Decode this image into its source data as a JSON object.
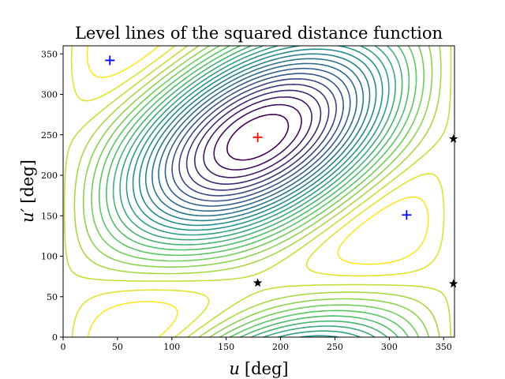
{
  "chart_data": {
    "type": "contour",
    "title": "Level lines of the squared distance function",
    "xlabel_symbol": "u",
    "xlabel_unit": "[deg]",
    "ylabel_symbol": "u′",
    "ylabel_unit": "[deg]",
    "xlim": [
      0,
      360
    ],
    "ylim": [
      0,
      360
    ],
    "xticks": [
      "0",
      "50",
      "100",
      "150",
      "200",
      "250",
      "300",
      "350"
    ],
    "yticks": [
      "0",
      "50",
      "100",
      "150",
      "200",
      "250",
      "300",
      "350"
    ],
    "grid": false,
    "colormap": "viridis",
    "levels": 24,
    "markers": [
      {
        "kind": "plus",
        "color": "#ff0000",
        "x": 179,
        "y": 247
      },
      {
        "kind": "plus",
        "color": "#0000ff",
        "x": 43,
        "y": 342
      },
      {
        "kind": "plus",
        "color": "#0000ff",
        "x": 316,
        "y": 151
      },
      {
        "kind": "star",
        "color": "#000000",
        "x": 179,
        "y": 67
      },
      {
        "kind": "star",
        "color": "#000000",
        "x": 359,
        "y": 245
      },
      {
        "kind": "star",
        "color": "#000000",
        "x": 359,
        "y": 66
      }
    ]
  }
}
